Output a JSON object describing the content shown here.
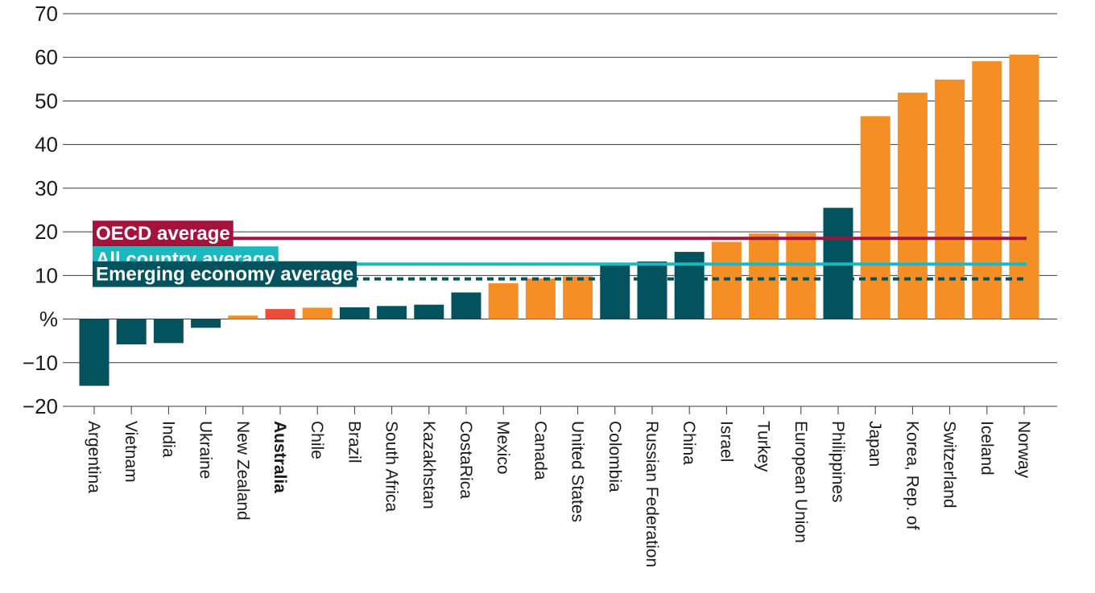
{
  "chart_data": {
    "type": "bar",
    "title": "",
    "xlabel": "",
    "ylabel": "",
    "ylim": [
      -20,
      70
    ],
    "yticks": [
      70,
      60,
      50,
      40,
      30,
      20,
      10,
      0,
      -10,
      -20
    ],
    "ytick_labels": [
      "70",
      "60",
      "50",
      "40",
      "30",
      "20",
      "10",
      "%",
      "−10",
      "−20"
    ],
    "grid": true,
    "highlight_category": "Australia",
    "categories": [
      "Argentina",
      "Vietnam",
      "India",
      "Ukraine",
      "New Zealand",
      "Australia",
      "Chile",
      "Brazil",
      "South Africa",
      "Kazakhstan",
      "CostaRica",
      "Mexico",
      "Canada",
      "United States",
      "Colombia",
      "Russian Federation",
      "China",
      "Israel",
      "Turkey",
      "European Union",
      "Philippines",
      "Japan",
      "Korea, Rep. of",
      "Switzerland",
      "Iceland",
      "Norway"
    ],
    "values": [
      -15.3,
      -5.8,
      -5.5,
      -2.0,
      0.8,
      2.3,
      2.6,
      2.7,
      3.0,
      3.3,
      6.1,
      8.2,
      9.3,
      9.8,
      12.8,
      13.2,
      15.4,
      17.7,
      19.6,
      19.8,
      25.5,
      46.5,
      51.9,
      54.9,
      59.1,
      60.6
    ],
    "groups": [
      "emerging",
      "emerging",
      "emerging",
      "emerging",
      "oecd",
      "australia",
      "oecd",
      "emerging",
      "emerging",
      "emerging",
      "emerging",
      "oecd",
      "oecd",
      "oecd",
      "emerging",
      "emerging",
      "emerging",
      "oecd",
      "oecd",
      "oecd",
      "emerging",
      "oecd",
      "oecd",
      "oecd",
      "oecd",
      "oecd"
    ],
    "colors": {
      "emerging": "#03535f",
      "oecd": "#f58e24",
      "australia": "#ec4e3a",
      "oecd_average": "#a4133c",
      "all_country_average": "#1bb8c0",
      "emerging_average": "#03535f"
    },
    "reference_lines": [
      {
        "label": "OECD average",
        "value": 18.5,
        "style": "solid",
        "color_key": "oecd_average"
      },
      {
        "label": "All country average",
        "value": 12.6,
        "style": "solid",
        "color_key": "all_country_average"
      },
      {
        "label": "Emerging  economy average",
        "value": 9.2,
        "style": "dashed",
        "color_key": "emerging_average"
      }
    ]
  }
}
